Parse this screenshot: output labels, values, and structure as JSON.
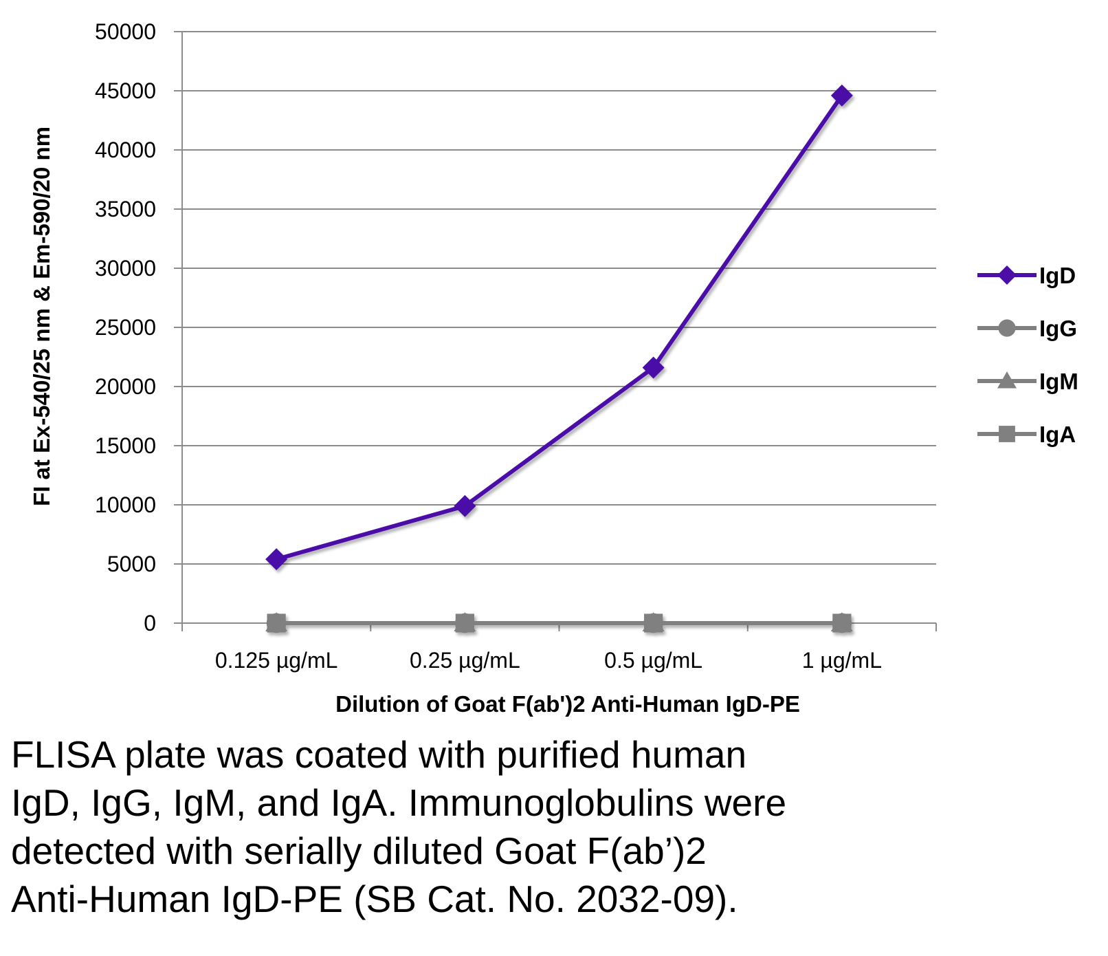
{
  "chart_data": {
    "type": "line",
    "categories": [
      "0.125 µg/mL",
      "0.25 µg/mL",
      "0.5 µg/mL",
      "1 µg/mL"
    ],
    "series": [
      {
        "name": "IgD",
        "marker": "diamond",
        "color": "#4b0fa8",
        "values": [
          5400,
          9900,
          21600,
          44600
        ]
      },
      {
        "name": "IgG",
        "marker": "circle",
        "color": "#808080",
        "values": [
          0,
          0,
          0,
          0
        ]
      },
      {
        "name": "IgM",
        "marker": "triangle",
        "color": "#808080",
        "values": [
          0,
          0,
          0,
          0
        ]
      },
      {
        "name": "IgA",
        "marker": "square",
        "color": "#808080",
        "values": [
          0,
          0,
          0,
          0
        ]
      }
    ],
    "xlabel": "Dilution of Goat F(ab')2 Anti-Human IgD-PE",
    "ylabel": "FI at Ex-540/25 nm & Em-590/20 nm",
    "ylim": [
      0,
      50000
    ],
    "yticks": [
      "0",
      "5000",
      "10000",
      "15000",
      "20000",
      "25000",
      "30000",
      "35000",
      "40000",
      "45000",
      "50000"
    ],
    "grid": true,
    "legend": "right"
  },
  "caption": {
    "lines": [
      "FLISA plate was coated with purified human",
      "IgD, IgG, IgM, and IgA.  Immunoglobulins were",
      "detected with serially diluted Goat F(ab’)2",
      "Anti-Human IgD-PE (SB Cat. No. 2032-09)."
    ]
  }
}
